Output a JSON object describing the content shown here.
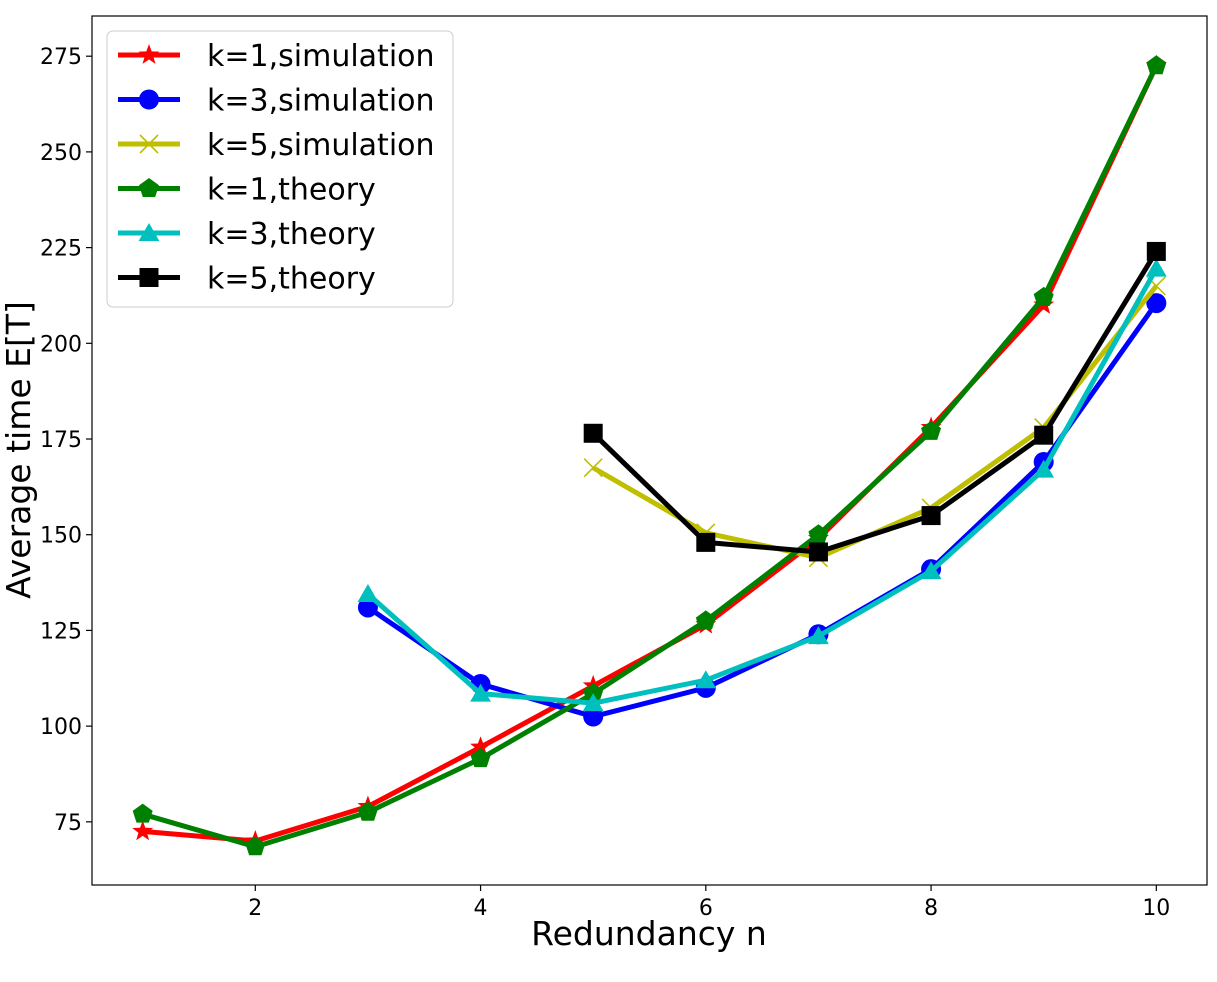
{
  "chart_data": {
    "type": "line",
    "xlabel": "Redundancy n",
    "ylabel": "Average time E[T]",
    "xlim": [
      0.55,
      10.45
    ],
    "ylim": [
      58.5,
      285.5
    ],
    "xticks": [
      2,
      4,
      6,
      8,
      10
    ],
    "yticks": [
      75,
      100,
      125,
      150,
      175,
      200,
      225,
      250,
      275
    ],
    "grid": false,
    "legend_position": "top-left",
    "series": [
      {
        "name": "k=1,simulation",
        "color": "#ff0000",
        "marker": "star",
        "x": [
          1,
          2,
          3,
          4,
          5,
          6,
          7,
          8,
          9,
          10
        ],
        "y": [
          72.5,
          70,
          79,
          94.5,
          110.5,
          126.5,
          149,
          178,
          210,
          272.5
        ]
      },
      {
        "name": "k=3,simulation",
        "color": "#0000ff",
        "marker": "circle",
        "x": [
          3,
          4,
          5,
          6,
          7,
          8,
          9,
          10
        ],
        "y": [
          131,
          111,
          102.5,
          110,
          124,
          141,
          169,
          210.5
        ]
      },
      {
        "name": "k=5,simulation",
        "color": "#bfbf00",
        "marker": "x",
        "x": [
          5,
          6,
          7,
          8,
          9,
          10
        ],
        "y": [
          167.5,
          150.5,
          144,
          157,
          178,
          215
        ]
      },
      {
        "name": "k=1,theory",
        "color": "#008000",
        "marker": "pentagon",
        "x": [
          1,
          2,
          3,
          4,
          5,
          6,
          7,
          8,
          9,
          10
        ],
        "y": [
          77,
          68.5,
          77.5,
          91.5,
          108.5,
          127.5,
          150,
          177,
          212,
          272.5
        ]
      },
      {
        "name": "k=3,theory",
        "color": "#00bfbf",
        "marker": "triangle",
        "x": [
          3,
          4,
          5,
          6,
          7,
          8,
          9,
          10
        ],
        "y": [
          134.5,
          108.5,
          106,
          112,
          123.5,
          140.5,
          167,
          219.5
        ]
      },
      {
        "name": "k=5,theory",
        "color": "#000000",
        "marker": "square",
        "x": [
          5,
          6,
          7,
          8,
          9,
          10
        ],
        "y": [
          176.5,
          148,
          145.5,
          155,
          176,
          224
        ]
      }
    ]
  }
}
